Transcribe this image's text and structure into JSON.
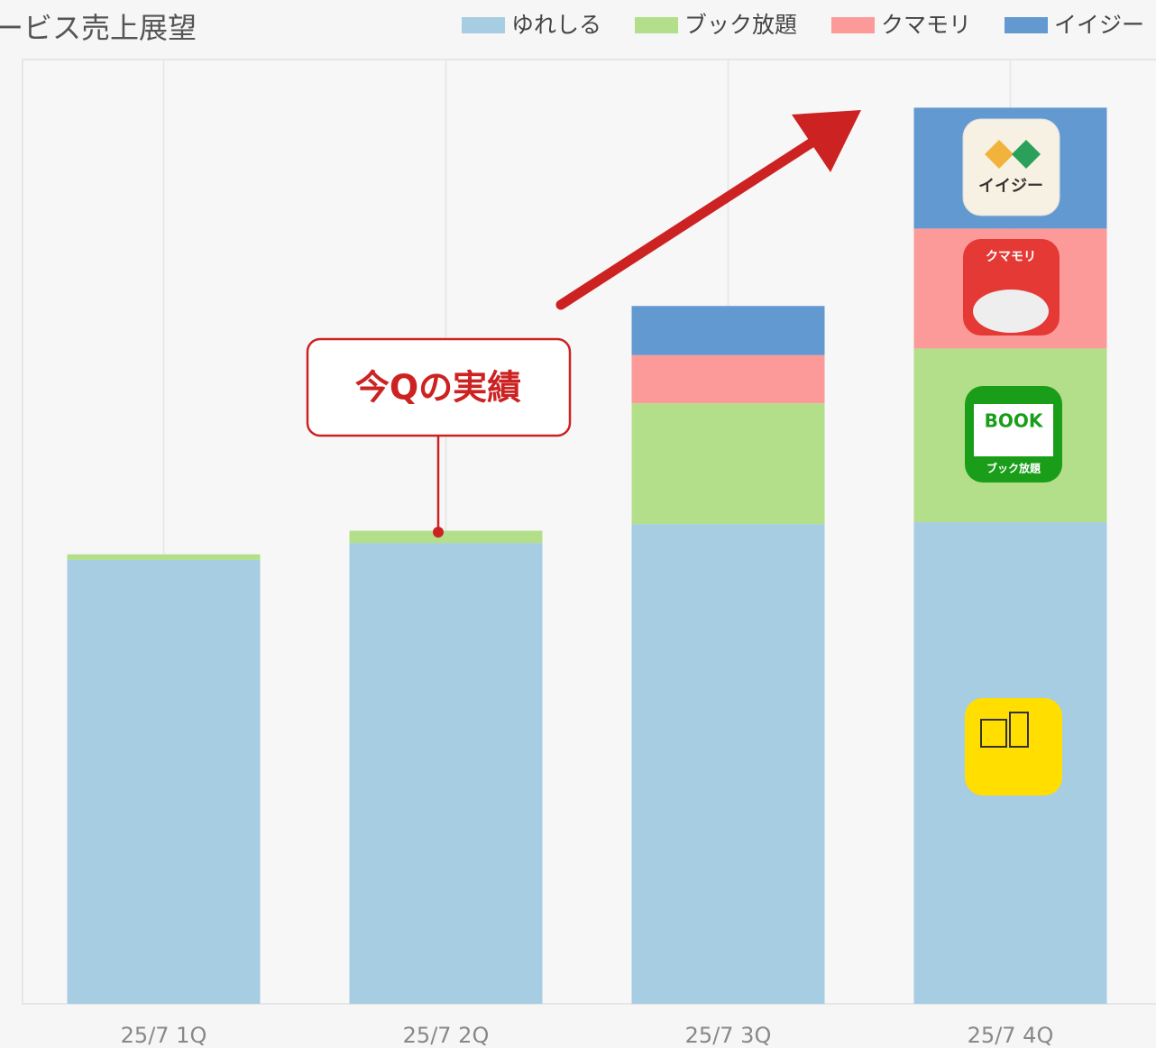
{
  "chart_data": {
    "type": "stacked_bar",
    "title": "ービス売上展望",
    "categories": [
      "25/7 1Q",
      "25/7 2Q",
      "25/7 3Q",
      "25/7 4Q"
    ],
    "series": [
      {
        "name": "ゆれしる",
        "color": "#a6cde2",
        "values": [
          47.0,
          48.8,
          50.8,
          51.0
        ]
      },
      {
        "name": "ブック放題",
        "color": "#b3df8a",
        "values": [
          0.6,
          1.3,
          12.8,
          18.4
        ]
      },
      {
        "name": "クマモリ",
        "color": "#fc9a99",
        "values": [
          0,
          0,
          5.1,
          12.7
        ]
      },
      {
        "name": "イイジー",
        "color": "#6399d1",
        "values": [
          0,
          0,
          5.2,
          12.8
        ]
      }
    ],
    "ylim": [
      0,
      100
    ],
    "annotation": "今Qの実績",
    "icons": {
      "easy": "イイジー",
      "kumamori": "クマモリ",
      "book": "BOOK",
      "book_sub": "ブック放題"
    }
  }
}
